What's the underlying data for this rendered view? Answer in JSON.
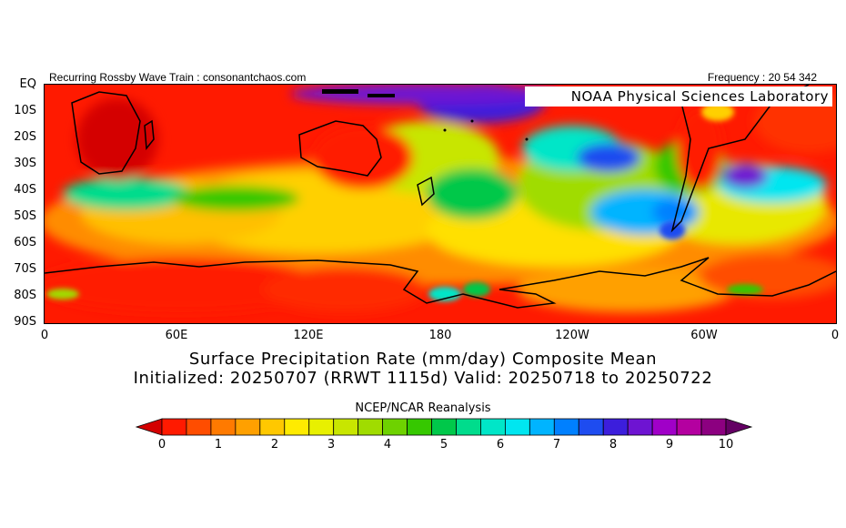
{
  "header": {
    "left_text": "Recurring Rossby Wave Train : consonantchaos.com",
    "right_text": "Frequency : 20 54 342"
  },
  "map": {
    "badge": "NOAA Physical Sciences Laboratory"
  },
  "titles": {
    "main": "Surface Precipitation Rate (mm/day) Composite Mean",
    "sub": "Initialized: 20250707 (RRWT 1115d) Valid: 20250718 to 20250722",
    "source": "NCEP/NCAR Reanalysis"
  },
  "chart_data": {
    "type": "heatmap",
    "title": "Surface Precipitation Rate (mm/day) Composite Mean",
    "subtitle": "Initialized: 20250707 (RRWT 1115d) Valid: 20250718 to 20250722",
    "x_ticks": [
      "0",
      "60E",
      "120E",
      "180",
      "120W",
      "60W",
      "0"
    ],
    "y_ticks": [
      "EQ",
      "10S",
      "20S",
      "30S",
      "40S",
      "50S",
      "60S",
      "70S",
      "80S",
      "90S"
    ],
    "x_values": [
      0,
      60,
      120,
      180,
      240,
      300,
      360
    ],
    "y_values": [
      0,
      -10,
      -20,
      -30,
      -40,
      -50,
      -60,
      -70,
      -80,
      -90
    ],
    "xlim": [
      0,
      360
    ],
    "ylim": [
      -90,
      0
    ],
    "colorbar": {
      "labels": [
        "0",
        "1",
        "2",
        "3",
        "4",
        "5",
        "6",
        "7",
        "8",
        "9",
        "10"
      ],
      "range": [
        0,
        10
      ],
      "step": 0.5,
      "colors": [
        "#d40000",
        "#ff1a00",
        "#ff4d00",
        "#ff7a00",
        "#ffa000",
        "#ffc800",
        "#ffeb00",
        "#e8f000",
        "#c8e600",
        "#a0dc00",
        "#6ed200",
        "#36c800",
        "#00c84a",
        "#00dc8c",
        "#00e6c8",
        "#00e6f0",
        "#00b4ff",
        "#0080ff",
        "#1e4cf0",
        "#3c1edc",
        "#6e14d2",
        "#a000c8",
        "#b400a0",
        "#8c0080",
        "#640064"
      ]
    },
    "grid": false,
    "legend": "bottom"
  }
}
